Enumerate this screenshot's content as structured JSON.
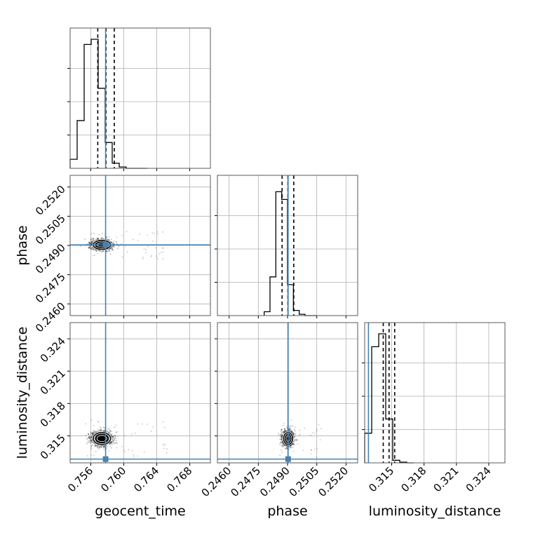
{
  "chart_data": {
    "type": "corner",
    "parameters": [
      {
        "name": "geocent_time",
        "label": "geocent_time",
        "range": [
          0.7535,
          0.7705
        ],
        "ticks": [
          0.756,
          0.76,
          0.764,
          0.768
        ],
        "tick_labels": [
          "0.756",
          "0.760",
          "0.764",
          "0.768"
        ],
        "truth": 0.7578,
        "quantiles": [
          0.75685,
          0.75785,
          0.75885
        ],
        "hist_edges": [
          0.7535,
          0.75435,
          0.7552,
          0.75605,
          0.7569,
          0.75775,
          0.7586,
          0.75945,
          0.7603,
          0.76115,
          0.762,
          0.76285
        ],
        "hist_counts": [
          0.07,
          0.37,
          0.96,
          1.0,
          0.62,
          0.2,
          0.04,
          0.01,
          0.0,
          0.0,
          0.0
        ]
      },
      {
        "name": "phase",
        "label": "phase",
        "range": [
          0.2454,
          0.2526
        ],
        "ticks": [
          0.246,
          0.2475,
          0.249,
          0.2505,
          0.252
        ],
        "tick_labels": [
          "0.2460",
          "0.2475",
          "0.2490",
          "0.2505",
          "0.2520"
        ],
        "truth": 0.24903,
        "quantiles": [
          0.24872,
          0.24902,
          0.24932
        ],
        "hist_edges": [
          0.2478,
          0.2481,
          0.2484,
          0.2487,
          0.249,
          0.2493,
          0.2496,
          0.2499,
          0.2502,
          0.2505
        ],
        "hist_counts": [
          0.03,
          0.3,
          0.96,
          0.9,
          0.24,
          0.04,
          0.01,
          0.0,
          0.0
        ]
      },
      {
        "name": "luminosity_distance",
        "label": "luminosity_distance",
        "range": [
          0.3125,
          0.3255
        ],
        "ticks": [
          0.315,
          0.318,
          0.321,
          0.324
        ],
        "tick_labels": [
          "0.315",
          "0.318",
          "0.321",
          "0.324"
        ],
        "truth": 0.31285,
        "quantiles": [
          0.31422,
          0.31476,
          0.31528
        ],
        "hist_edges": [
          0.3125,
          0.31315,
          0.3138,
          0.31445,
          0.3151,
          0.31575,
          0.3164,
          0.31705
        ],
        "hist_counts": [
          0.23,
          0.9,
          1.0,
          0.34,
          0.02,
          0.005,
          0.0
        ]
      }
    ],
    "axis_labels": [
      "geocent_time",
      "phase",
      "luminosity_distance"
    ],
    "panels_2d": [
      {
        "row": 1,
        "col": 0,
        "x": "geocent_time",
        "y": "phase",
        "center": [
          0.75735,
          0.24903
        ],
        "spread": [
          0.00055,
          0.00012
        ]
      },
      {
        "row": 2,
        "col": 0,
        "x": "geocent_time",
        "y": "luminosity_distance",
        "center": [
          0.75735,
          0.31476
        ],
        "spread": [
          0.00055,
          0.00029
        ]
      },
      {
        "row": 2,
        "col": 1,
        "x": "phase",
        "y": "luminosity_distance",
        "center": [
          0.24903,
          0.31476
        ],
        "spread": [
          0.00012,
          0.00029
        ]
      }
    ],
    "colors": {
      "truth": "#4682b4",
      "histogram": "#000000",
      "density": "#000000",
      "grid": "#b0b0b0"
    },
    "grid": true,
    "legend": "none"
  }
}
